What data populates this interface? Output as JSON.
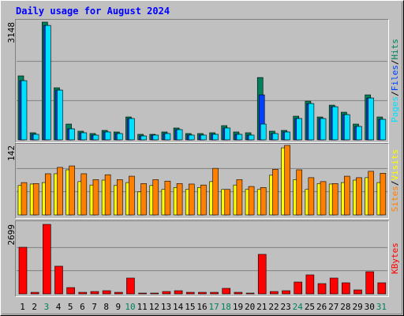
{
  "chart_data": [
    {
      "type": "bar",
      "title": "Daily usage for August 2024",
      "series": [
        {
          "name": "Pages",
          "color": "#00e0ff",
          "values": [
            1583,
            148,
            3060,
            1330,
            295,
            190,
            127,
            211,
            169,
            570,
            105,
            127,
            169,
            274,
            127,
            127,
            148,
            317,
            148,
            127,
            422,
            169,
            211,
            570,
            971,
            570,
            886,
            675,
            359,
            1118,
            549
          ]
        },
        {
          "name": "Files",
          "color": "#0040ff",
          "values": [
            1583,
            148,
            3060,
            1330,
            295,
            190,
            127,
            211,
            169,
            570,
            105,
            127,
            169,
            274,
            127,
            127,
            148,
            317,
            148,
            127,
            1203,
            169,
            211,
            570,
            971,
            570,
            886,
            675,
            359,
            1118,
            549
          ]
        },
        {
          "name": "Hits",
          "color": "#00805c",
          "values": [
            1711,
            190,
            3148,
            1393,
            422,
            232,
            169,
            253,
            211,
            612,
            148,
            148,
            211,
            317,
            169,
            169,
            190,
            380,
            211,
            190,
            1667,
            232,
            253,
            633,
            1034,
            612,
            928,
            739,
            422,
            1203,
            612
          ]
        }
      ],
      "ylim": [
        0,
        3148
      ],
      "yticks": [
        3148
      ],
      "grid_divisions": 3
    },
    {
      "type": "bar",
      "series": [
        {
          "name": "Sites",
          "color": "#ff8000",
          "values": [
            66,
            64,
            84,
            97,
            100,
            84,
            72,
            82,
            72,
            79,
            64,
            72,
            69,
            64,
            63,
            61,
            95,
            52,
            72,
            58,
            56,
            93,
            142,
            92,
            76,
            68,
            64,
            79,
            76,
            89,
            85
          ]
        },
        {
          "name": "Visits",
          "color": "#ffff00",
          "values": [
            60,
            63,
            66,
            84,
            92,
            68,
            61,
            71,
            60,
            66,
            47,
            60,
            52,
            56,
            52,
            56,
            68,
            52,
            61,
            52,
            52,
            81,
            137,
            72,
            52,
            64,
            63,
            66,
            71,
            76,
            66
          ]
        }
      ],
      "ylim": [
        0,
        142
      ],
      "yticks": [
        142
      ],
      "grid_divisions": 3
    },
    {
      "type": "bar",
      "categories": [
        "1",
        "2",
        "3",
        "4",
        "5",
        "6",
        "7",
        "8",
        "9",
        "10",
        "11",
        "12",
        "13",
        "14",
        "15",
        "16",
        "17",
        "18",
        "19",
        "20",
        "21",
        "22",
        "23",
        "24",
        "25",
        "26",
        "27",
        "28",
        "29",
        "30",
        "31"
      ],
      "category_colors": [
        "#000000",
        "#000000",
        "#00805c",
        "#000000",
        "#000000",
        "#000000",
        "#000000",
        "#000000",
        "#000000",
        "#00805c",
        "#000000",
        "#000000",
        "#000000",
        "#000000",
        "#000000",
        "#000000",
        "#00805c",
        "#00805c",
        "#000000",
        "#000000",
        "#000000",
        "#000000",
        "#000000",
        "#00805c",
        "#000000",
        "#000000",
        "#000000",
        "#000000",
        "#000000",
        "#000000",
        "#00805c"
      ],
      "series": [
        {
          "name": "KBytes",
          "color": "#ff0000",
          "values": [
            1810,
            61,
            2699,
            1075,
            245,
            61,
            92,
            123,
            61,
            614,
            31,
            31,
            92,
            123,
            61,
            61,
            61,
            215,
            61,
            31,
            1535,
            92,
            123,
            460,
            737,
            399,
            614,
            430,
            154,
            860,
            430
          ]
        }
      ],
      "ylim": [
        0,
        2699
      ],
      "yticks": [
        2699
      ],
      "grid_divisions": 3
    }
  ]
}
